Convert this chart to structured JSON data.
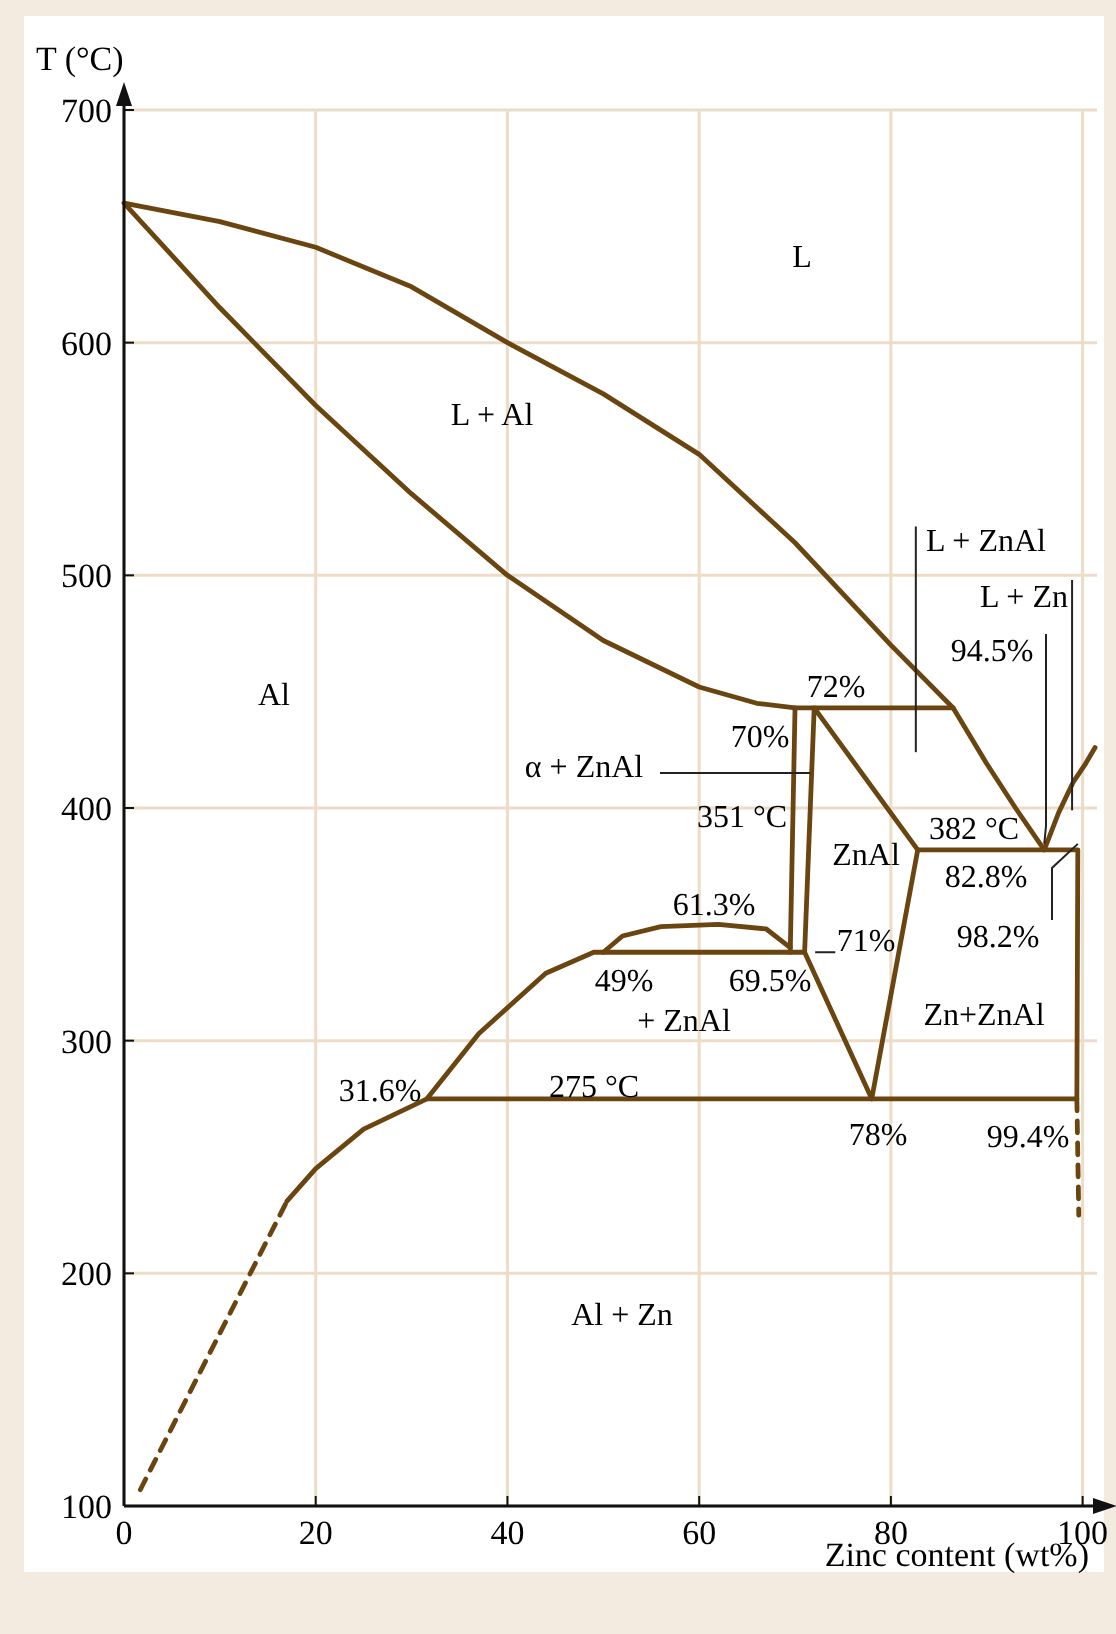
{
  "chart_data": {
    "type": "line",
    "xlabel": "Zinc content (wt%)",
    "ylabel": "T (°C)",
    "xlim": [
      0,
      101.5
    ],
    "ylim": [
      100,
      700
    ],
    "xticks": [
      0,
      20,
      40,
      60,
      80,
      100
    ],
    "yticks": [
      100,
      200,
      300,
      400,
      500,
      600,
      700
    ],
    "grid": true,
    "marker": "none",
    "series": [
      {
        "color": "#6b4510",
        "x": [
          70,
          66,
          60,
          50,
          40,
          30,
          20,
          10,
          0,
          10,
          20,
          30,
          40,
          50,
          60,
          70,
          80,
          86.5,
          90,
          93,
          96,
          97.5,
          99,
          100.3,
          101.3
        ],
        "values": [
          443,
          445,
          452,
          472,
          500,
          535,
          573,
          615,
          660,
          652,
          641,
          624,
          600,
          578,
          552,
          514,
          470,
          443,
          419,
          400,
          382,
          398,
          411,
          419,
          426
        ]
      },
      {
        "color": "#6b4510",
        "x": [
          86.5,
          70,
          69.5
        ],
        "values": [
          443,
          443,
          338
        ]
      },
      {
        "color": "#6b4510",
        "x": [
          71,
          72,
          82.8,
          78
        ],
        "values": [
          338,
          443,
          382,
          275
        ]
      },
      {
        "color": "#6b4510",
        "x": [
          17,
          20,
          25,
          31.6,
          37,
          44,
          49,
          71,
          78
        ],
        "values": [
          231,
          245,
          262,
          275,
          303,
          329,
          338,
          338,
          275
        ]
      },
      {
        "color": "#6b4510",
        "x": [
          31.6,
          99.4,
          99.5,
          82.8
        ],
        "values": [
          275,
          275,
          382,
          382
        ]
      },
      {
        "color": "#6b4510",
        "x": [
          50,
          52,
          56,
          62,
          67,
          69.5
        ],
        "values": [
          338,
          345,
          349,
          350,
          348,
          340
        ]
      },
      {
        "color": "#6b4510",
        "line_style": "dashed",
        "x": [
          1.7,
          17
        ],
        "values": [
          107,
          231
        ]
      },
      {
        "color": "#6b4510",
        "line_style": "dashed",
        "x": [
          99.4,
          99.6
        ],
        "values": [
          275,
          225
        ]
      }
    ],
    "annotations": [
      "L",
      "L + Al",
      "Al",
      {
        "text": "α + ZnAl",
        "x": 71.6,
        "y": 415
      },
      "70%",
      "72%",
      "351 °C",
      "ZnAl",
      "61.3%",
      "49%",
      "69.5%",
      "71%",
      "+ ZnAl",
      "Zn+ZnAl",
      "275 °C",
      "31.6%",
      "78%",
      "99.4%",
      "382 °C",
      "82.8%",
      {
        "text": "98.2%",
        "x": 99.5,
        "y": 382
      },
      {
        "text": "94.5%",
        "x": 96,
        "y": 382
      },
      "L + ZnAl",
      "L + Zn",
      "Al + Zn"
    ]
  }
}
